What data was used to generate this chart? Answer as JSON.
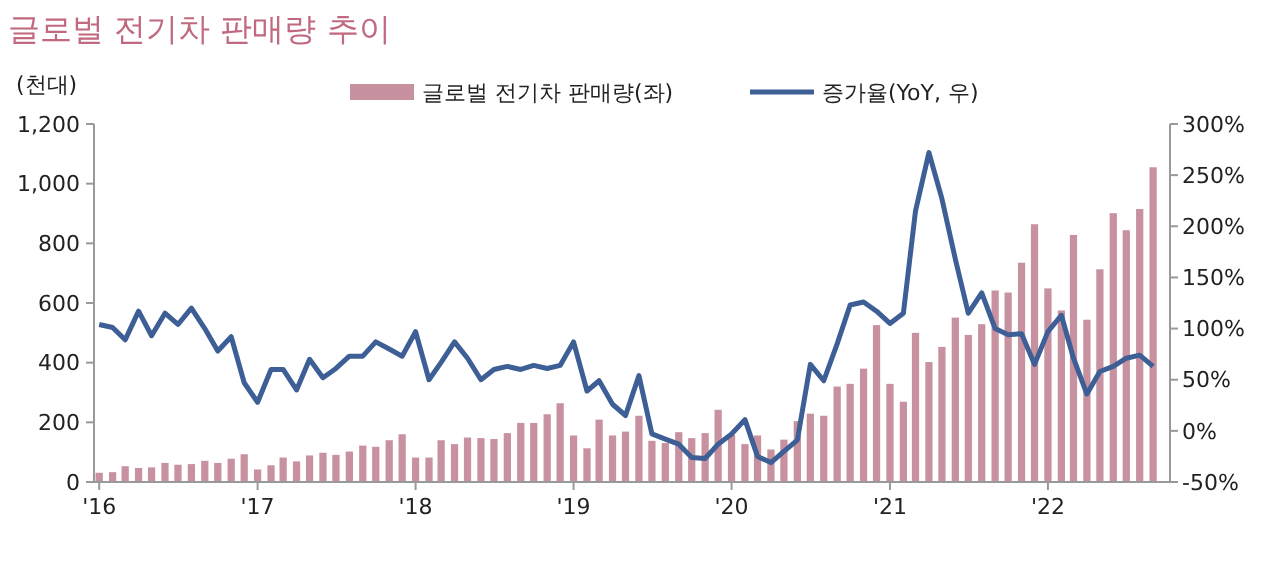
{
  "chart_data": {
    "type": "bar",
    "title": "글로벌 전기차 판매량 추이",
    "ylabel": "(천대)",
    "x": [
      "2016-01",
      "2016-02",
      "2016-03",
      "2016-04",
      "2016-05",
      "2016-06",
      "2016-07",
      "2016-08",
      "2016-09",
      "2016-10",
      "2016-11",
      "2016-12",
      "2017-01",
      "2017-02",
      "2017-03",
      "2017-04",
      "2017-05",
      "2017-06",
      "2017-07",
      "2017-08",
      "2017-09",
      "2017-10",
      "2017-11",
      "2017-12",
      "2018-01",
      "2018-02",
      "2018-03",
      "2018-04",
      "2018-05",
      "2018-06",
      "2018-07",
      "2018-08",
      "2018-09",
      "2018-10",
      "2018-11",
      "2018-12",
      "2019-01",
      "2019-02",
      "2019-03",
      "2019-04",
      "2019-05",
      "2019-06",
      "2019-07",
      "2019-08",
      "2019-09",
      "2019-10",
      "2019-11",
      "2019-12",
      "2020-01",
      "2020-02",
      "2020-03",
      "2020-04",
      "2020-05",
      "2020-06",
      "2020-07",
      "2020-08",
      "2020-09",
      "2020-10",
      "2020-11",
      "2020-12",
      "2021-01",
      "2021-02",
      "2021-03",
      "2021-04",
      "2021-05",
      "2021-06",
      "2021-07",
      "2021-08",
      "2021-09",
      "2021-10",
      "2021-11",
      "2021-12",
      "2022-01",
      "2022-02",
      "2022-03",
      "2022-04",
      "2022-05",
      "2022-06",
      "2022-07",
      "2022-08",
      "2022-09"
    ],
    "xlim": [
      "2015-12-20",
      "2022-10-10"
    ],
    "xticks": [
      {
        "value": "2016-01",
        "label": "'16"
      },
      {
        "value": "2017-01",
        "label": "'17"
      },
      {
        "value": "2018-01",
        "label": "'18"
      },
      {
        "value": "2019-01",
        "label": "'19"
      },
      {
        "value": "2020-01",
        "label": "'20"
      },
      {
        "value": "2021-01",
        "label": "'21"
      },
      {
        "value": "2022-01",
        "label": "'22"
      }
    ],
    "ylim": [
      0,
      1200
    ],
    "yticks": [
      {
        "value": 0,
        "label": "0"
      },
      {
        "value": 200,
        "label": "200"
      },
      {
        "value": 400,
        "label": "400"
      },
      {
        "value": 600,
        "label": "600"
      },
      {
        "value": 800,
        "label": "800"
      },
      {
        "value": 1000,
        "label": "1,000"
      },
      {
        "value": 1200,
        "label": "1,200"
      }
    ],
    "y2lim": [
      -50,
      300
    ],
    "y2ticks": [
      {
        "value": -50,
        "label": "-50%"
      },
      {
        "value": 0,
        "label": "0%"
      },
      {
        "value": 50,
        "label": "50%"
      },
      {
        "value": 100,
        "label": "100%"
      },
      {
        "value": 150,
        "label": "150%"
      },
      {
        "value": 200,
        "label": "200%"
      },
      {
        "value": 250,
        "label": "250%"
      },
      {
        "value": 300,
        "label": "300%"
      }
    ],
    "legend": "top",
    "grid": false,
    "series": [
      {
        "name": "글로벌 전기차 판매량(좌)",
        "color": "#c8919f",
        "values": [
          31,
          33,
          53,
          47,
          49,
          64,
          58,
          60,
          71,
          64,
          78,
          93,
          42,
          56,
          82,
          69,
          89,
          98,
          91,
          102,
          122,
          118,
          140,
          160,
          82,
          82,
          140,
          127,
          149,
          147,
          144,
          164,
          198,
          198,
          227,
          264,
          156,
          113,
          209,
          156,
          169,
          222,
          138,
          131,
          167,
          147,
          164,
          242,
          158,
          127,
          156,
          109,
          142,
          204,
          229,
          222,
          320,
          329,
          380,
          526,
          329,
          269,
          500,
          402,
          453,
          551,
          493,
          529,
          642,
          635,
          735,
          864,
          649,
          575,
          828,
          544,
          713,
          901,
          844,
          915,
          1055
        ]
      },
      {
        "type": "line",
        "name": "증가율(YoY, 우)",
        "color": "#3d5f96",
        "axis": "y2",
        "values": [
          104,
          101,
          89,
          117,
          93,
          115,
          104,
          120,
          100,
          78,
          92,
          47,
          28,
          60,
          60,
          40,
          70,
          52,
          61,
          73,
          73,
          87,
          80,
          73,
          97,
          50,
          67,
          87,
          71,
          50,
          60,
          63,
          60,
          64,
          61,
          64,
          87,
          39,
          49,
          26,
          15,
          54,
          -3,
          -8,
          -13,
          -26,
          -27,
          -13,
          -3,
          11,
          -25,
          -31,
          -20,
          -9,
          65,
          49,
          85,
          123,
          126,
          117,
          105,
          115,
          215,
          272,
          227,
          168,
          115,
          135,
          100,
          94,
          95,
          65,
          97,
          113,
          71,
          36,
          58,
          63,
          71,
          74,
          63
        ]
      }
    ]
  }
}
